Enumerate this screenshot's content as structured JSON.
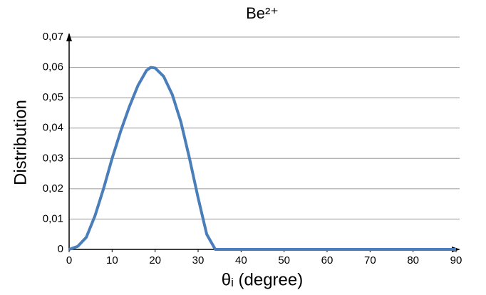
{
  "chart_data": {
    "type": "line",
    "title": "Be²⁺",
    "x_label": "θᵢ (degree)",
    "y_label": "Distribution",
    "x": [
      0,
      2,
      4,
      6,
      8,
      10,
      12,
      14,
      16,
      18,
      19,
      20,
      22,
      24,
      26,
      28,
      30,
      32,
      34,
      36,
      40,
      50,
      60,
      70,
      80,
      90
    ],
    "series": [
      {
        "color": "#4a7ebb",
        "values": [
          0,
          0.001,
          0.004,
          0.011,
          0.02,
          0.03,
          0.039,
          0.047,
          0.054,
          0.059,
          0.06,
          0.0598,
          0.057,
          0.051,
          0.042,
          0.03,
          0.017,
          0.005,
          0,
          0,
          0,
          0,
          0,
          0,
          0,
          0
        ]
      }
    ],
    "xlim": [
      0,
      90
    ],
    "xticks": [
      0,
      10,
      20,
      30,
      40,
      50,
      60,
      70,
      80,
      90
    ],
    "ylim": [
      0,
      0.07
    ],
    "yticks": [
      0,
      {
        "value": 0.01,
        "label": "0,01"
      },
      {
        "value": 0.02,
        "label": "0,02"
      },
      {
        "value": 0.03,
        "label": "0,03"
      },
      {
        "value": 0.04,
        "label": "0,04"
      },
      {
        "value": 0.05,
        "label": "0,05"
      },
      {
        "value": 0.06,
        "label": "0,06"
      },
      {
        "value": 0.07,
        "label": "0,07"
      }
    ],
    "grid": true
  }
}
